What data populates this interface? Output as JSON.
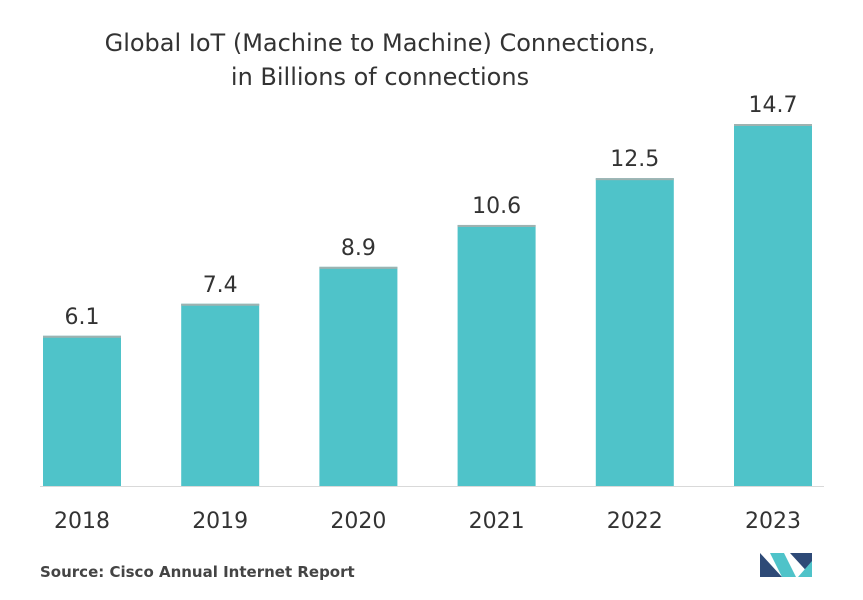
{
  "title_line1": "Global IoT (Machine to Machine) Connections,",
  "title_line2": "in Billions of connections",
  "source": "Source: Cisco Annual Internet Report",
  "colors": {
    "bar": "#4fc3c9",
    "bar_top": "#9fb2b0",
    "axis": "#d9d9d9",
    "text": "#333333",
    "logo_dark": "#2e4a77",
    "logo_light": "#4fc3c9"
  },
  "chart_data": {
    "type": "bar",
    "title": "Global IoT (Machine to Machine) Connections, in Billions of connections",
    "categories": [
      "2018",
      "2019",
      "2020",
      "2021",
      "2022",
      "2023"
    ],
    "values": [
      6.1,
      7.4,
      8.9,
      10.6,
      12.5,
      14.7
    ],
    "data_labels": [
      "6.1",
      "7.4",
      "8.9",
      "10.6",
      "12.5",
      "14.7"
    ],
    "xlabel": "",
    "ylabel": "",
    "ylim": [
      0,
      14.7
    ],
    "grid": false,
    "legend": "none"
  }
}
